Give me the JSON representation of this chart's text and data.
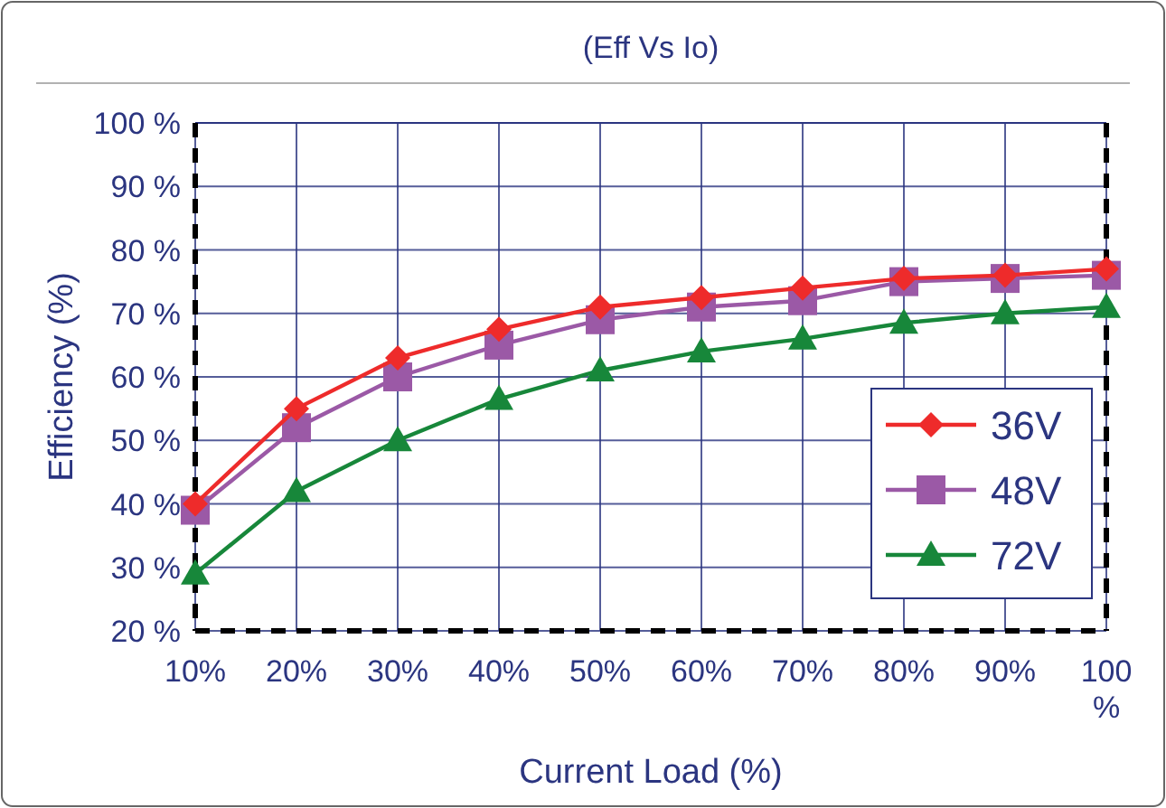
{
  "chart_data": {
    "type": "line",
    "title": "(Eff Vs Io)",
    "xlabel": "Current Load (%)",
    "ylabel": "Efficiency (%)",
    "x": [
      10,
      20,
      30,
      40,
      50,
      60,
      70,
      80,
      90,
      100
    ],
    "series": [
      {
        "name": "36V",
        "color": "#ee2b2b",
        "marker": "diamond",
        "values": [
          40,
          55,
          63,
          67.5,
          71,
          72.5,
          74,
          75.5,
          76,
          77
        ]
      },
      {
        "name": "48V",
        "color": "#9b59a6",
        "marker": "square",
        "values": [
          39,
          52,
          60,
          65,
          69,
          71,
          72,
          75,
          75.5,
          76
        ]
      },
      {
        "name": "72V",
        "color": "#17873a",
        "marker": "triangle",
        "values": [
          29,
          42,
          50,
          56.5,
          61,
          64,
          66,
          68.5,
          70,
          71
        ]
      }
    ],
    "xlim": [
      10,
      100
    ],
    "xticks": [
      {
        "value": 10,
        "label": "10%"
      },
      {
        "value": 20,
        "label": "20%"
      },
      {
        "value": 30,
        "label": "30%"
      },
      {
        "value": 40,
        "label": "40%"
      },
      {
        "value": 50,
        "label": "50%"
      },
      {
        "value": 60,
        "label": "60%"
      },
      {
        "value": 70,
        "label": "70%"
      },
      {
        "value": 80,
        "label": "80%"
      },
      {
        "value": 90,
        "label": "90%"
      },
      {
        "value": 100,
        "label": "100 %"
      }
    ],
    "ylim": [
      20,
      100
    ],
    "yticks": [
      {
        "value": 20,
        "label": "20 %"
      },
      {
        "value": 30,
        "label": "30 %"
      },
      {
        "value": 40,
        "label": "40 %"
      },
      {
        "value": 50,
        "label": "50 %"
      },
      {
        "value": 60,
        "label": "60 %"
      },
      {
        "value": 70,
        "label": "70 %"
      },
      {
        "value": 80,
        "label": "80 %"
      },
      {
        "value": 90,
        "label": "90 %"
      },
      {
        "value": 100,
        "label": "100 %"
      }
    ],
    "grid": true,
    "legend": "bottom right",
    "line_style": "solid"
  }
}
